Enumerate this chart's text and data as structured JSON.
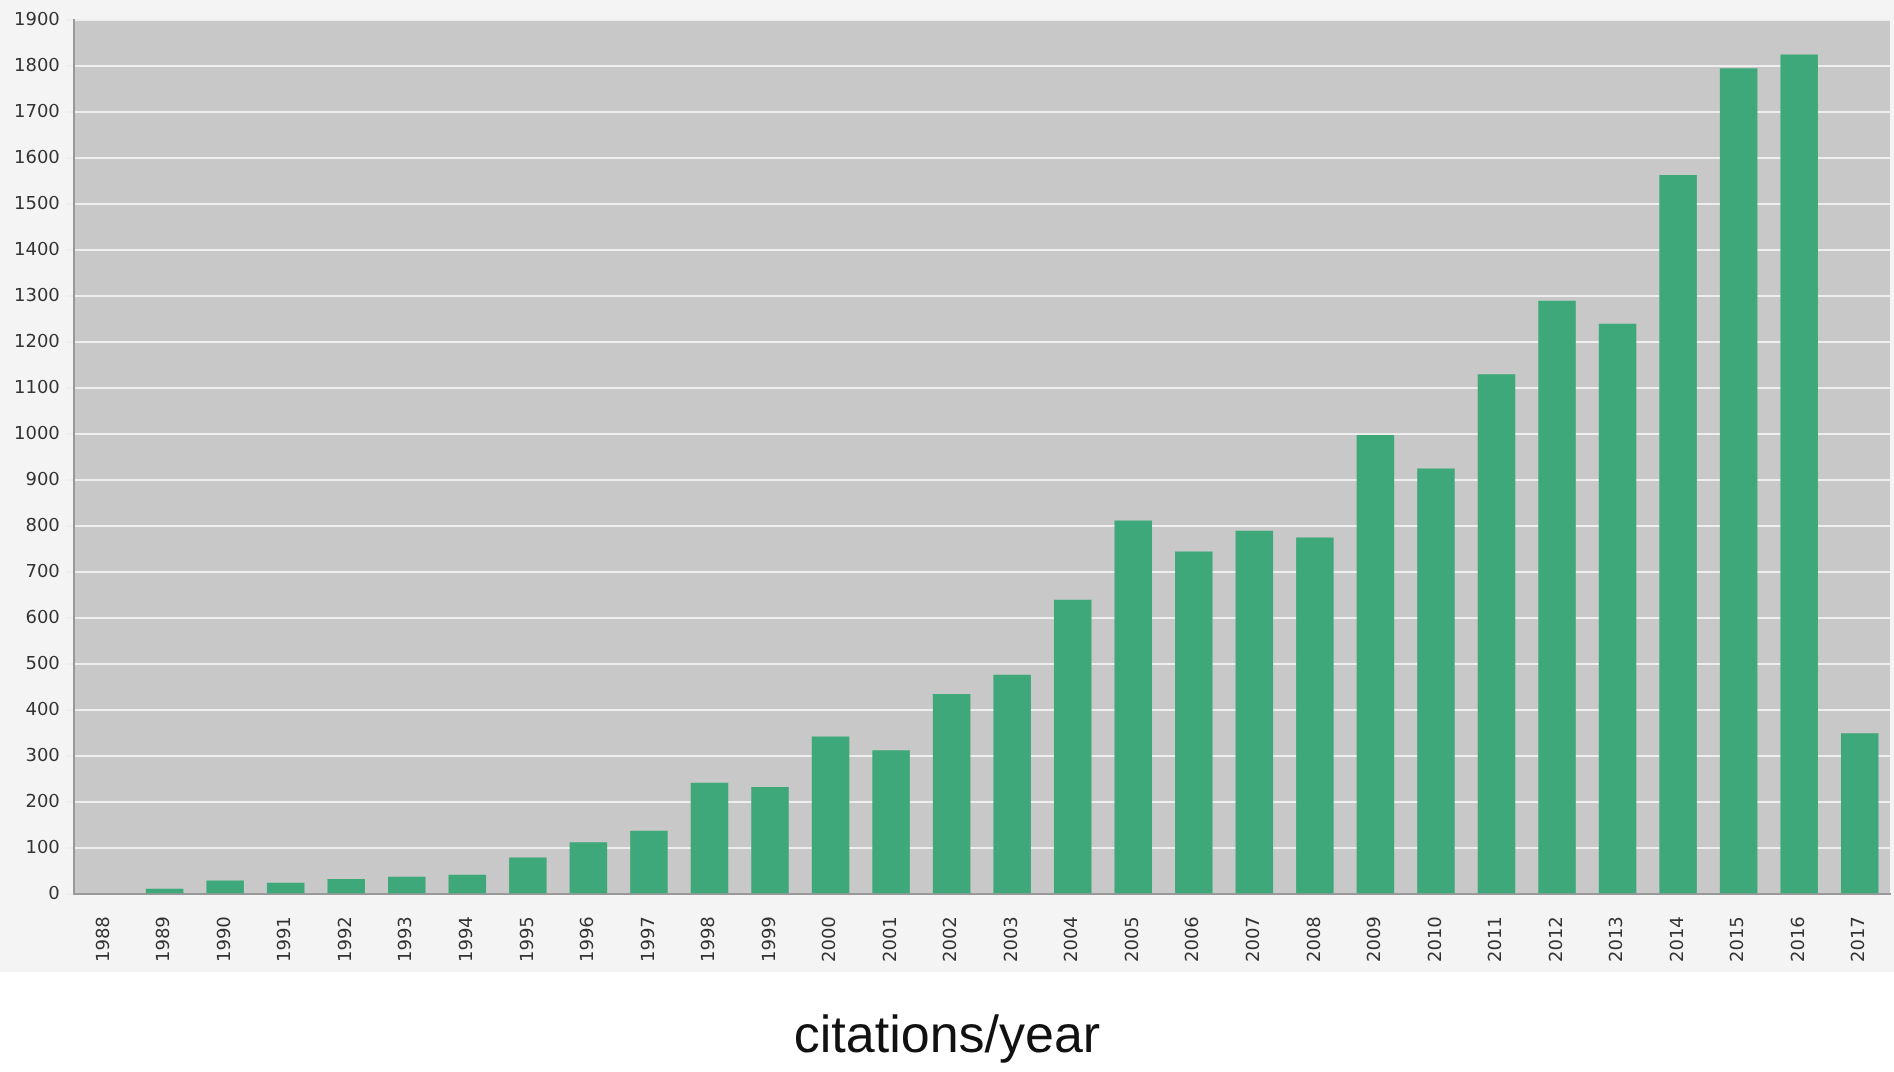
{
  "chart_data": {
    "type": "bar",
    "xlabel": "citations/year",
    "categories": [
      "1988",
      "1989",
      "1990",
      "1991",
      "1992",
      "1993",
      "1994",
      "1995",
      "1996",
      "1997",
      "1998",
      "1999",
      "2000",
      "2001",
      "2002",
      "2003",
      "2004",
      "2005",
      "2006",
      "2007",
      "2008",
      "2009",
      "2010",
      "2011",
      "2012",
      "2013",
      "2014",
      "2015",
      "2016",
      "2017"
    ],
    "values": [
      0,
      12,
      30,
      25,
      33,
      38,
      42,
      80,
      113,
      138,
      242,
      233,
      343,
      313,
      435,
      477,
      640,
      812,
      745,
      790,
      775,
      998,
      925,
      1130,
      1290,
      1240,
      1563,
      1795,
      1825,
      350
    ],
    "color": "#3fa87a",
    "ylim": [
      0,
      1900
    ],
    "yticks": [
      0,
      100,
      200,
      300,
      400,
      500,
      600,
      700,
      800,
      900,
      1000,
      1100,
      1200,
      1300,
      1400,
      1500,
      1600,
      1700,
      1800,
      1900
    ],
    "grid": "y"
  }
}
